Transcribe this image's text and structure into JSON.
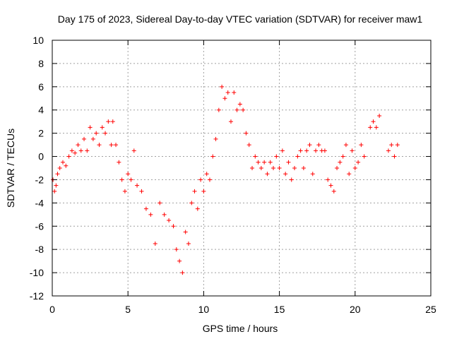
{
  "chart_data": {
    "type": "scatter",
    "title": "Day 175 of 2023, Sidereal Day-to-day VTEC variation (SDTVAR) for receiver maw1",
    "xlabel": "GPS time / hours",
    "ylabel": "SDTVAR / TECUs",
    "xlim": [
      0,
      25
    ],
    "ylim": [
      -12,
      10
    ],
    "xticks": [
      0,
      5,
      10,
      15,
      20,
      25
    ],
    "yticks": [
      -12,
      -10,
      -8,
      -6,
      -4,
      -2,
      0,
      2,
      4,
      6,
      8,
      10
    ],
    "grid": true,
    "marker": "+",
    "color": "#ff0000",
    "series": [
      {
        "name": "SDTVAR",
        "x": [
          0.05,
          0.15,
          0.25,
          0.35,
          0.5,
          0.7,
          0.9,
          1.1,
          1.3,
          1.5,
          1.7,
          1.9,
          2.1,
          2.3,
          2.5,
          2.7,
          2.9,
          3.1,
          3.3,
          3.5,
          3.7,
          3.9,
          4.0,
          4.2,
          4.4,
          4.6,
          4.8,
          5.0,
          5.2,
          5.4,
          5.6,
          5.9,
          6.2,
          6.5,
          6.8,
          7.1,
          7.4,
          7.7,
          8.0,
          8.2,
          8.4,
          8.6,
          8.8,
          9.0,
          9.2,
          9.4,
          9.6,
          9.8,
          10.0,
          10.2,
          10.4,
          10.6,
          10.8,
          11.0,
          11.2,
          11.4,
          11.6,
          11.8,
          12.0,
          12.2,
          12.4,
          12.6,
          12.8,
          13.0,
          13.2,
          13.4,
          13.6,
          13.8,
          14.0,
          14.2,
          14.4,
          14.6,
          14.8,
          15.0,
          15.2,
          15.4,
          15.6,
          15.8,
          16.0,
          16.2,
          16.4,
          16.6,
          16.8,
          17.0,
          17.2,
          17.4,
          17.6,
          17.8,
          18.0,
          18.2,
          18.4,
          18.6,
          18.8,
          19.0,
          19.2,
          19.4,
          19.6,
          19.8,
          20.0,
          20.2,
          20.4,
          20.6,
          21.0,
          21.2,
          21.4,
          21.6,
          22.2,
          22.4,
          22.6,
          22.8
        ],
        "y": [
          -2.0,
          -3.0,
          -2.5,
          -1.5,
          -1.0,
          -0.5,
          -0.8,
          0.0,
          0.5,
          0.3,
          1.0,
          0.5,
          1.5,
          0.5,
          2.5,
          1.5,
          2.0,
          1.0,
          2.5,
          2.0,
          3.0,
          1.0,
          3.0,
          1.0,
          -0.5,
          -2.0,
          -3.0,
          -1.5,
          -2.0,
          0.5,
          -2.5,
          -3.0,
          -4.5,
          -5.0,
          -7.5,
          -4.0,
          -5.0,
          -5.5,
          -6.0,
          -8.0,
          -9.0,
          -10.0,
          -6.5,
          -7.5,
          -4.0,
          -3.0,
          -4.5,
          -2.0,
          -3.0,
          -1.5,
          -2.0,
          0.0,
          1.5,
          4.0,
          6.0,
          5.0,
          5.5,
          3.0,
          5.5,
          4.0,
          4.5,
          4.0,
          2.0,
          1.0,
          -1.0,
          0.0,
          -0.5,
          -1.0,
          -0.5,
          -1.5,
          -0.5,
          -1.0,
          0.0,
          -1.0,
          0.5,
          -1.5,
          -0.5,
          -2.0,
          -1.0,
          0.0,
          0.5,
          -1.0,
          0.5,
          1.0,
          -1.5,
          0.5,
          1.0,
          0.5,
          0.5,
          -2.0,
          -2.5,
          -3.0,
          -1.0,
          -0.5,
          0.0,
          1.0,
          -1.5,
          0.5,
          -1.0,
          -0.5,
          1.0,
          0.0,
          2.5,
          3.0,
          2.5,
          3.5,
          0.5,
          1.0,
          0.0,
          1.0
        ]
      }
    ]
  }
}
